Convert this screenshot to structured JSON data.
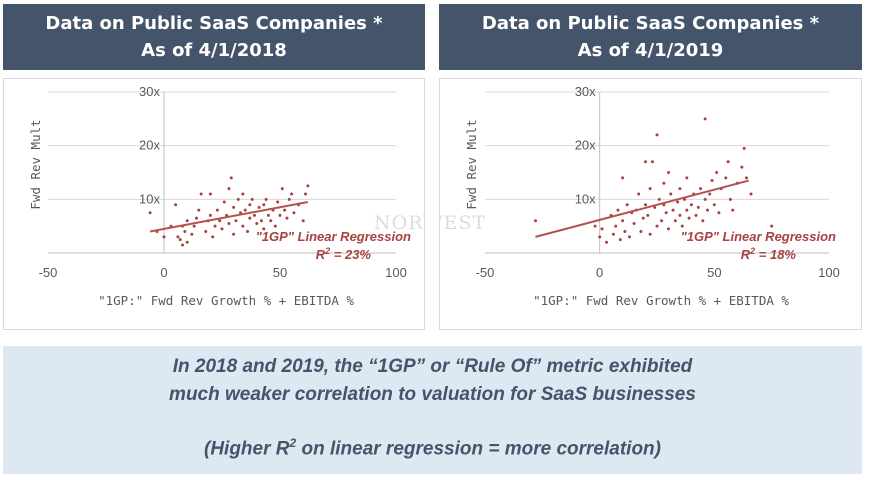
{
  "panels": [
    {
      "title_line1": "Data on Public SaaS Companies *",
      "title_line2": "As of 4/1/2018"
    },
    {
      "title_line1": "Data on Public SaaS Companies *",
      "title_line2": "As of 4/1/2019"
    }
  ],
  "watermark": "NORWEST",
  "colors": {
    "header_bg": "#44546a",
    "point": "#a6423f",
    "trend": "#b55250",
    "note_bg": "#dde8f3",
    "note_text": "#44546a"
  },
  "chart_data": [
    {
      "type": "scatter",
      "xlabel": "\"1GP:\" Fwd Rev Growth % + EBITDA %",
      "ylabel": "Fwd Rev Mult",
      "xlim": [
        -50,
        100
      ],
      "ylim": [
        0,
        30
      ],
      "xticks": [
        "-50",
        "0",
        "50",
        "100"
      ],
      "yticks": [
        "10x",
        "20x",
        "30x"
      ],
      "grid": true,
      "annotation": {
        "label": "\"1GP\" Linear Regression",
        "r2_prefix": "R",
        "r2_sup": "2",
        "r2_value": " = 23%"
      },
      "trendline": {
        "x": [
          -6,
          62
        ],
        "y": [
          4.0,
          9.5
        ]
      },
      "points": [
        [
          -6,
          7.5
        ],
        [
          -3,
          4
        ],
        [
          0,
          3
        ],
        [
          3,
          5
        ],
        [
          5,
          9
        ],
        [
          6,
          3
        ],
        [
          7,
          2.5
        ],
        [
          8,
          1.5
        ],
        [
          8,
          5
        ],
        [
          9,
          4
        ],
        [
          10,
          2
        ],
        [
          10,
          6
        ],
        [
          12,
          3.5
        ],
        [
          13,
          5
        ],
        [
          14,
          6.5
        ],
        [
          15,
          8
        ],
        [
          16,
          11
        ],
        [
          18,
          4
        ],
        [
          19,
          6
        ],
        [
          20,
          7
        ],
        [
          20,
          11
        ],
        [
          21,
          3
        ],
        [
          22,
          5
        ],
        [
          23,
          8
        ],
        [
          24,
          6
        ],
        [
          25,
          4.5
        ],
        [
          26,
          9.5
        ],
        [
          27,
          7
        ],
        [
          28,
          5.5
        ],
        [
          28,
          12
        ],
        [
          29,
          14
        ],
        [
          30,
          8.5
        ],
        [
          30,
          3.5
        ],
        [
          31,
          6
        ],
        [
          32,
          10
        ],
        [
          33,
          7.5
        ],
        [
          34,
          5
        ],
        [
          34,
          11
        ],
        [
          35,
          8
        ],
        [
          36,
          4
        ],
        [
          37,
          9
        ],
        [
          37,
          6.5
        ],
        [
          38,
          10
        ],
        [
          39,
          7
        ],
        [
          40,
          5.5
        ],
        [
          41,
          8.5
        ],
        [
          42,
          6
        ],
        [
          43,
          9
        ],
        [
          43,
          4.5
        ],
        [
          44,
          10
        ],
        [
          45,
          7
        ],
        [
          46,
          6
        ],
        [
          47,
          8
        ],
        [
          48,
          5
        ],
        [
          49,
          9.5
        ],
        [
          50,
          7
        ],
        [
          51,
          12
        ],
        [
          52,
          8
        ],
        [
          53,
          6.5
        ],
        [
          54,
          10
        ],
        [
          55,
          11
        ],
        [
          56,
          7.5
        ],
        [
          58,
          9
        ],
        [
          60,
          6
        ],
        [
          61,
          11
        ],
        [
          62,
          12.5
        ]
      ]
    },
    {
      "type": "scatter",
      "xlabel": "\"1GP:\" Fwd Rev Growth % + EBITDA %",
      "ylabel": "Fwd Rev Mult",
      "xlim": [
        -50,
        100
      ],
      "ylim": [
        0,
        30
      ],
      "xticks": [
        "-50",
        "0",
        "50",
        "100"
      ],
      "yticks": [
        "10x",
        "20x",
        "30x"
      ],
      "grid": true,
      "annotation": {
        "label": "\"1GP\" Linear Regression",
        "r2_prefix": "R",
        "r2_sup": "2",
        "r2_value": " = 18%"
      },
      "trendline": {
        "x": [
          -28,
          65
        ],
        "y": [
          3.0,
          13.5
        ]
      },
      "points": [
        [
          -28,
          6
        ],
        [
          -2,
          5
        ],
        [
          0,
          3
        ],
        [
          1,
          4.5
        ],
        [
          3,
          2
        ],
        [
          5,
          7
        ],
        [
          6,
          3.5
        ],
        [
          7,
          5
        ],
        [
          8,
          8
        ],
        [
          9,
          2.5
        ],
        [
          10,
          14
        ],
        [
          10,
          6
        ],
        [
          11,
          4
        ],
        [
          12,
          9
        ],
        [
          13,
          3
        ],
        [
          14,
          7.5
        ],
        [
          15,
          5.5
        ],
        [
          16,
          8
        ],
        [
          17,
          11
        ],
        [
          18,
          4
        ],
        [
          19,
          6.5
        ],
        [
          20,
          17
        ],
        [
          20,
          9
        ],
        [
          21,
          7
        ],
        [
          22,
          12
        ],
        [
          22,
          3.5
        ],
        [
          23,
          17
        ],
        [
          24,
          8.5
        ],
        [
          25,
          22
        ],
        [
          25,
          5
        ],
        [
          26,
          10
        ],
        [
          27,
          6
        ],
        [
          28,
          13
        ],
        [
          28,
          9
        ],
        [
          29,
          7.5
        ],
        [
          30,
          15
        ],
        [
          30,
          4.5
        ],
        [
          31,
          11
        ],
        [
          32,
          8
        ],
        [
          33,
          6
        ],
        [
          34,
          9.5
        ],
        [
          35,
          12
        ],
        [
          35,
          7
        ],
        [
          36,
          5
        ],
        [
          37,
          10
        ],
        [
          38,
          8
        ],
        [
          38,
          14
        ],
        [
          39,
          6.5
        ],
        [
          40,
          9
        ],
        [
          41,
          11
        ],
        [
          42,
          7
        ],
        [
          43,
          8.5
        ],
        [
          44,
          12
        ],
        [
          45,
          6
        ],
        [
          46,
          25
        ],
        [
          46,
          10
        ],
        [
          47,
          8
        ],
        [
          48,
          11
        ],
        [
          49,
          13.5
        ],
        [
          50,
          9
        ],
        [
          51,
          15
        ],
        [
          52,
          7.5
        ],
        [
          53,
          12
        ],
        [
          55,
          14
        ],
        [
          56,
          17
        ],
        [
          57,
          10
        ],
        [
          58,
          8
        ],
        [
          60,
          13
        ],
        [
          62,
          16
        ],
        [
          63,
          19.5
        ],
        [
          64,
          14
        ],
        [
          66,
          11
        ],
        [
          75,
          5
        ]
      ]
    }
  ],
  "note": {
    "line1": "In 2018 and 2019, the “1GP” or “Rule Of” metric exhibited",
    "line2": "much weaker correlation to valuation for SaaS businesses",
    "line3_pre": "(Higher R",
    "line3_sup": "2",
    "line3_post": " on linear regression = more correlation)"
  }
}
